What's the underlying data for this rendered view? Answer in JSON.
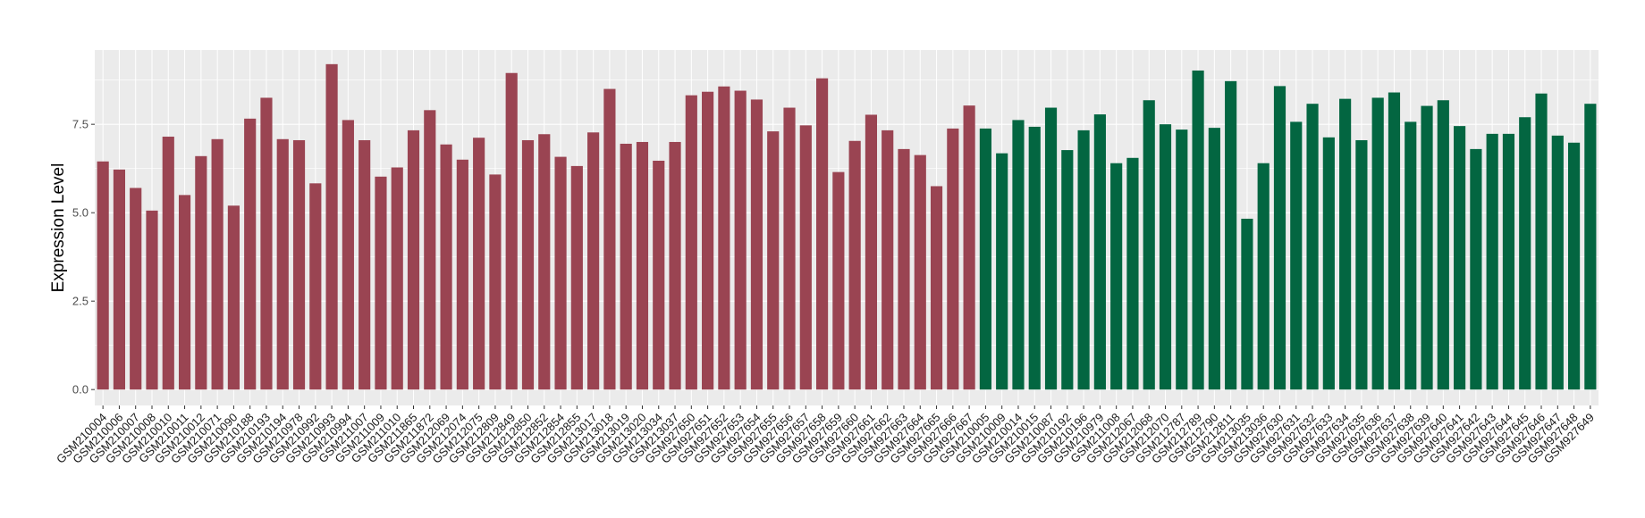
{
  "chart_data": {
    "type": "bar",
    "title": "",
    "xlabel": "",
    "ylabel": "Expression Level",
    "ylim": [
      -0.45,
      9.6
    ],
    "yticks": [
      0.0,
      2.5,
      5.0,
      7.5
    ],
    "ytick_labels": [
      "0.0",
      "2.5",
      "5.0",
      "7.5"
    ],
    "grid": true,
    "legend": "none",
    "colors": {
      "group1": "#9a4452",
      "group2": "#036641",
      "panel": "#ebebeb",
      "gridline": "#ffffff"
    },
    "categories": [
      "GSM210004",
      "GSM210006",
      "GSM210007",
      "GSM210008",
      "GSM210010",
      "GSM210011",
      "GSM210012",
      "GSM210071",
      "GSM210090",
      "GSM210188",
      "GSM210193",
      "GSM210194",
      "GSM210978",
      "GSM210992",
      "GSM210993",
      "GSM210994",
      "GSM211007",
      "GSM211009",
      "GSM211010",
      "GSM211865",
      "GSM211872",
      "GSM212069",
      "GSM212074",
      "GSM212075",
      "GSM212809",
      "GSM212849",
      "GSM212850",
      "GSM212852",
      "GSM212854",
      "GSM212855",
      "GSM213017",
      "GSM213018",
      "GSM213019",
      "GSM213020",
      "GSM213034",
      "GSM213037",
      "GSM927650",
      "GSM927651",
      "GSM927652",
      "GSM927653",
      "GSM927654",
      "GSM927655",
      "GSM927656",
      "GSM927657",
      "GSM927658",
      "GSM927659",
      "GSM927660",
      "GSM927661",
      "GSM927662",
      "GSM927663",
      "GSM927664",
      "GSM927665",
      "GSM927666",
      "GSM927667",
      "GSM210005",
      "GSM210009",
      "GSM210014",
      "GSM210015",
      "GSM210087",
      "GSM210192",
      "GSM210196",
      "GSM210979",
      "GSM211008",
      "GSM212067",
      "GSM212068",
      "GSM212070",
      "GSM212787",
      "GSM212789",
      "GSM212790",
      "GSM212811",
      "GSM213035",
      "GSM213036",
      "GSM927630",
      "GSM927631",
      "GSM927632",
      "GSM927633",
      "GSM927634",
      "GSM927635",
      "GSM927636",
      "GSM927637",
      "GSM927638",
      "GSM927639",
      "GSM927640",
      "GSM927641",
      "GSM927642",
      "GSM927643",
      "GSM927644",
      "GSM927645",
      "GSM927646",
      "GSM927647",
      "GSM927648",
      "GSM927649"
    ],
    "series": [
      {
        "values": [
          6.45,
          6.22,
          5.7,
          5.06,
          7.15,
          5.5,
          6.6,
          7.08,
          5.2,
          7.66,
          8.25,
          7.08,
          7.05,
          5.83,
          9.2,
          7.62,
          7.05,
          6.02,
          6.28,
          7.33,
          7.9,
          6.93,
          6.5,
          7.12,
          6.08,
          8.95,
          7.05,
          7.22,
          6.58,
          6.32,
          7.27,
          8.5,
          6.95,
          7.0,
          6.47,
          7.0,
          8.32,
          8.42,
          8.57,
          8.45,
          8.2,
          7.3,
          7.97,
          7.47,
          8.8,
          6.15,
          7.03,
          7.77,
          7.33,
          6.8,
          6.63,
          5.75,
          7.38,
          8.03,
          7.38,
          6.68,
          7.62,
          7.43,
          7.97,
          6.77,
          7.33,
          7.78,
          6.4,
          6.55,
          8.18,
          7.5,
          7.35,
          9.02,
          7.4,
          8.72,
          4.83,
          6.4,
          8.58,
          7.57,
          8.08,
          7.13,
          8.22,
          7.05,
          8.25,
          8.4,
          7.57,
          8.02,
          8.18,
          7.45,
          6.8,
          7.23,
          7.23,
          7.7,
          8.37,
          7.18,
          6.98,
          8.08
        ],
        "groups": [
          1,
          1,
          1,
          1,
          1,
          1,
          1,
          1,
          1,
          1,
          1,
          1,
          1,
          1,
          1,
          1,
          1,
          1,
          1,
          1,
          1,
          1,
          1,
          1,
          1,
          1,
          1,
          1,
          1,
          1,
          1,
          1,
          1,
          1,
          1,
          1,
          1,
          1,
          1,
          1,
          1,
          1,
          1,
          1,
          1,
          1,
          1,
          1,
          1,
          1,
          1,
          1,
          1,
          1,
          2,
          2,
          2,
          2,
          2,
          2,
          2,
          2,
          2,
          2,
          2,
          2,
          2,
          2,
          2,
          2,
          2,
          2,
          2,
          2,
          2,
          2,
          2,
          2,
          2,
          2,
          2,
          2,
          2,
          2,
          2,
          2,
          2,
          2,
          2,
          2,
          2,
          2
        ]
      }
    ]
  }
}
